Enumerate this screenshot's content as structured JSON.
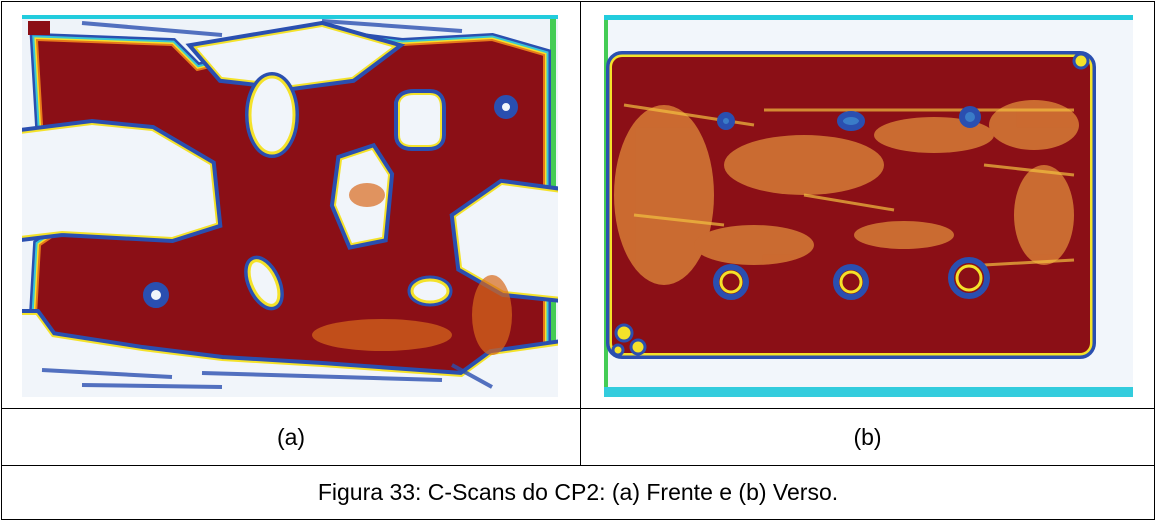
{
  "figure": {
    "labels": [
      "(a)",
      "(b)"
    ],
    "caption": "Figura 33: C-Scans do CP2: (a) Frente e (b) Verso."
  }
}
